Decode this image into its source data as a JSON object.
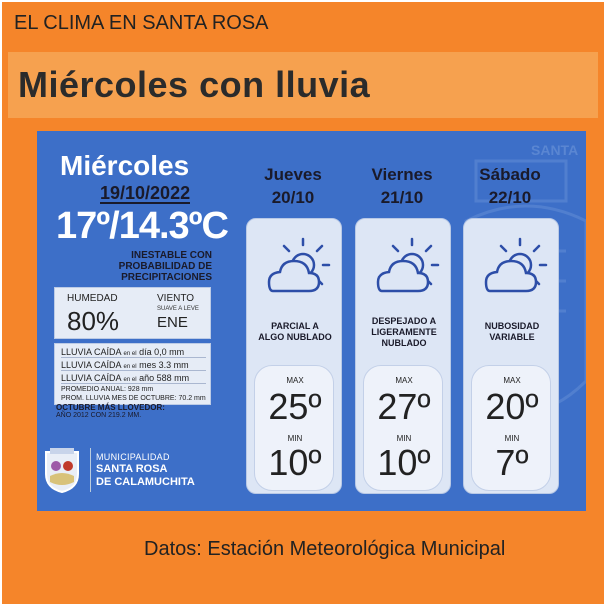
{
  "header": {
    "top_title": "EL CLIMA EN SANTA ROSA",
    "headline": "Miércoles con lluvia"
  },
  "today": {
    "day": "Miércoles",
    "date": "19/10/2022",
    "temp": "17º/14.3ºC",
    "desc_line1": "INESTABLE CON",
    "desc_line2": "PROBABILIDAD DE",
    "desc_line3": "PRECIPITACIONES",
    "humidity_label": "HUMEDAD",
    "humidity_value": "80%",
    "wind_label": "VIENTO",
    "wind_sub": "SUAVE A LEVE",
    "wind_value": "ENE",
    "rain_day_label": "LLUVIA CAÍDA",
    "rain_day_sub": "en el",
    "rain_day_value": "día 0,0 mm",
    "rain_month_label": "LLUVIA CAÍDA",
    "rain_month_sub": "en el",
    "rain_month_value": "mes 3.3 mm",
    "rain_year_label": "LLUVIA CAÍDA",
    "rain_year_sub": "en el",
    "rain_year_value": "año 588 mm",
    "prom_annual": "PROMEDIO ANUAL: 928  mm",
    "prom_october": "PROM. LLUVIA MES DE OCTUBRE: 70.2 mm",
    "oct_title": "OCTUBRE MÁS LLOVEDOR:",
    "oct_body": "AÑO 2012 CON 219.2 MM."
  },
  "municipality": {
    "line1": "MUNICIPALIDAD",
    "line2": "SANTA ROSA",
    "line3": "DE CALAMUCHITA"
  },
  "watermark_text": "SANTA",
  "forecast": [
    {
      "day": "Jueves",
      "date": "20/10",
      "cond_line1": "PARCIAL A",
      "cond_line2": "ALGO NUBLADO",
      "cond_line3": "",
      "max_label": "MAX",
      "max": "25º",
      "min_label": "MIN",
      "min": "10º",
      "icon": "partly-cloudy-icon"
    },
    {
      "day": "Viernes",
      "date": "21/10",
      "cond_line1": "DESPEJADO A",
      "cond_line2": "LIGERAMENTE",
      "cond_line3": "NUBLADO",
      "max_label": "MAX",
      "max": "27º",
      "min_label": "MIN",
      "min": "10º",
      "icon": "partly-cloudy-icon"
    },
    {
      "day": "Sábado",
      "date": "22/10",
      "cond_line1": "NUBOSIDAD",
      "cond_line2": "VARIABLE",
      "cond_line3": "",
      "max_label": "MAX",
      "max": "20º",
      "min_label": "MIN",
      "min": "7º",
      "icon": "partly-cloudy-icon"
    }
  ],
  "footer": "Datos: Estación Meteorológica Municipal",
  "colors": {
    "orange": "#f5852a",
    "panel_blue": "#3d6fc8",
    "card": "#dde6f5",
    "icon_stroke": "#2d4ea8"
  }
}
